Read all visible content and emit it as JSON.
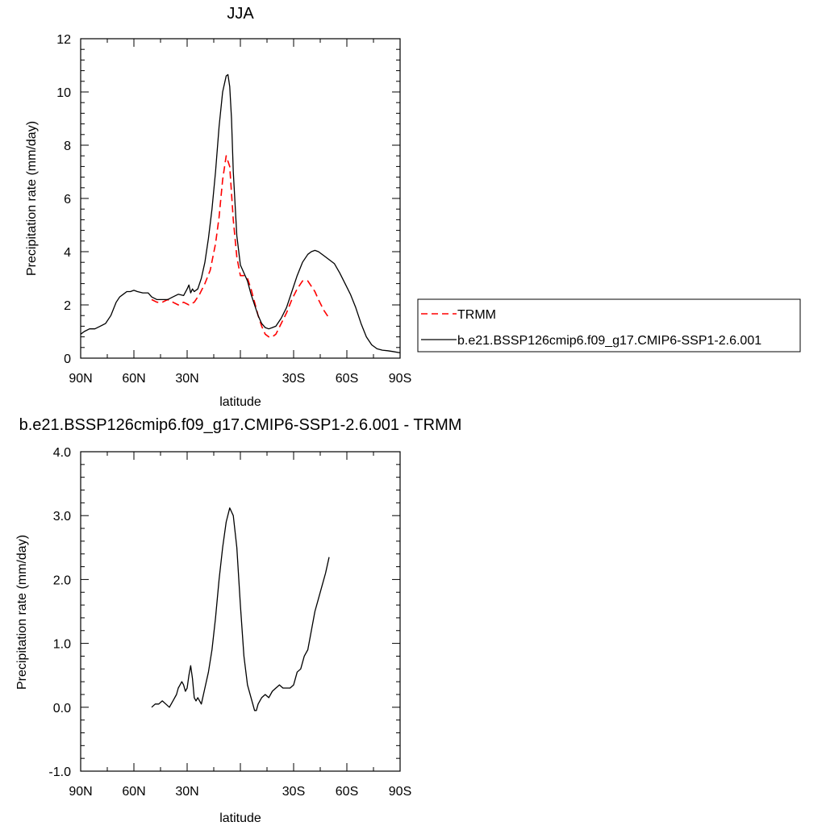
{
  "chart_data": [
    {
      "type": "line",
      "title": "JJA",
      "xlabel": "latitude",
      "ylabel": "Precipitation rate (mm/day)",
      "xlim": [
        90,
        -90
      ],
      "ylim": [
        0,
        12
      ],
      "xticks": [
        90,
        60,
        30,
        0,
        -30,
        -60,
        -90
      ],
      "xtick_labels": [
        "90N",
        "60N",
        "30N",
        "",
        "30S",
        "60S",
        "90S"
      ],
      "yticks": [
        0,
        2,
        4,
        6,
        8,
        10,
        12
      ],
      "ytick_labels": [
        "0",
        "2",
        "4",
        "6",
        "8",
        "10",
        "12"
      ],
      "legend_position": "right",
      "series": [
        {
          "name": "TRMM",
          "color": "#ff0000",
          "style": "dashed",
          "x": [
            50,
            47,
            44,
            41,
            38,
            35,
            32,
            29,
            26,
            23,
            20,
            17,
            14,
            12,
            10,
            8,
            6,
            4,
            2,
            0,
            -2,
            -4,
            -6,
            -8,
            -10,
            -12,
            -14,
            -16,
            -18,
            -20,
            -23,
            -26,
            -29,
            -32,
            -35,
            -38,
            -40,
            -42,
            -44,
            -47,
            -50
          ],
          "values": [
            2.2,
            2.1,
            2.1,
            2.2,
            2.1,
            2.0,
            2.1,
            2.0,
            2.1,
            2.4,
            2.8,
            3.3,
            4.3,
            5.3,
            6.7,
            7.6,
            7.2,
            5.2,
            3.8,
            3.1,
            3.1,
            3.0,
            2.6,
            2.1,
            1.6,
            1.2,
            0.9,
            0.8,
            0.8,
            0.9,
            1.3,
            1.7,
            2.2,
            2.6,
            2.9,
            2.9,
            2.7,
            2.5,
            2.2,
            1.8,
            1.5
          ]
        },
        {
          "name": "b.e21.BSSP126cmip6.f09_g17.CMIP6-SSP1-2.6.001",
          "color": "#000000",
          "style": "solid",
          "x": [
            90,
            88,
            85,
            82,
            79,
            76,
            73,
            70,
            68,
            66,
            64,
            62,
            60,
            58,
            55,
            52,
            50,
            47,
            44,
            41,
            38,
            35,
            32,
            30,
            29,
            28,
            27,
            26,
            24,
            22,
            20,
            18,
            16,
            14,
            12,
            10,
            8,
            7,
            6,
            5,
            4,
            2,
            0,
            -2,
            -4,
            -6,
            -8,
            -10,
            -12,
            -14,
            -16,
            -18,
            -20,
            -23,
            -26,
            -29,
            -32,
            -35,
            -38,
            -40,
            -42,
            -44,
            -47,
            -50,
            -53,
            -56,
            -59,
            -62,
            -65,
            -68,
            -71,
            -74,
            -77,
            -80,
            -83,
            -86,
            -90
          ],
          "values": [
            0.9,
            1.0,
            1.1,
            1.1,
            1.2,
            1.3,
            1.6,
            2.1,
            2.3,
            2.4,
            2.5,
            2.5,
            2.55,
            2.5,
            2.45,
            2.45,
            2.3,
            2.2,
            2.2,
            2.2,
            2.3,
            2.4,
            2.35,
            2.6,
            2.75,
            2.45,
            2.6,
            2.5,
            2.6,
            3.0,
            3.6,
            4.5,
            5.6,
            7.0,
            8.7,
            10.0,
            10.6,
            10.65,
            10.2,
            9.0,
            7.0,
            4.6,
            3.5,
            3.2,
            2.9,
            2.4,
            2.0,
            1.6,
            1.3,
            1.15,
            1.1,
            1.15,
            1.2,
            1.5,
            1.9,
            2.5,
            3.1,
            3.6,
            3.9,
            4.0,
            4.05,
            4.0,
            3.85,
            3.7,
            3.55,
            3.2,
            2.8,
            2.4,
            1.9,
            1.3,
            0.8,
            0.5,
            0.35,
            0.3,
            0.28,
            0.25,
            0.2
          ]
        }
      ]
    },
    {
      "type": "line",
      "title": "b.e21.BSSP126cmip6.f09_g17.CMIP6-SSP1-2.6.001 - TRMM",
      "xlabel": "latitude",
      "ylabel": "Precipitation rate (mm/day)",
      "xlim": [
        90,
        -90
      ],
      "ylim": [
        -1,
        4
      ],
      "xticks": [
        90,
        60,
        30,
        0,
        -30,
        -60,
        -90
      ],
      "xtick_labels": [
        "90N",
        "60N",
        "30N",
        "",
        "30S",
        "60S",
        "90S"
      ],
      "yticks": [
        -1,
        0,
        1,
        2,
        3,
        4
      ],
      "ytick_labels": [
        "-1.0",
        "0.0",
        "1.0",
        "2.0",
        "3.0",
        "4.0"
      ],
      "series": [
        {
          "color": "#000000",
          "style": "solid",
          "x": [
            50,
            48,
            46,
            44,
            42,
            40,
            38,
            36,
            35,
            34,
            33,
            32,
            31,
            30,
            29,
            28,
            27,
            26,
            25,
            24,
            22,
            20,
            18,
            16,
            14,
            12,
            10,
            8,
            6,
            4,
            2,
            0,
            -2,
            -4,
            -6,
            -7,
            -8,
            -9,
            -10,
            -12,
            -14,
            -16,
            -18,
            -20,
            -22,
            -24,
            -26,
            -28,
            -30,
            -32,
            -34,
            -36,
            -38,
            -40,
            -42,
            -44,
            -46,
            -48,
            -50
          ],
          "values": [
            0.0,
            0.05,
            0.05,
            0.1,
            0.05,
            0.0,
            0.1,
            0.2,
            0.3,
            0.35,
            0.4,
            0.35,
            0.25,
            0.3,
            0.5,
            0.65,
            0.45,
            0.15,
            0.1,
            0.15,
            0.05,
            0.3,
            0.55,
            0.9,
            1.4,
            2.0,
            2.5,
            2.9,
            3.12,
            3.0,
            2.5,
            1.6,
            0.8,
            0.35,
            0.15,
            0.05,
            -0.05,
            -0.05,
            0.05,
            0.15,
            0.2,
            0.15,
            0.25,
            0.3,
            0.35,
            0.3,
            0.3,
            0.3,
            0.35,
            0.55,
            0.6,
            0.8,
            0.9,
            1.2,
            1.5,
            1.7,
            1.9,
            2.1,
            2.35
          ]
        }
      ]
    }
  ]
}
